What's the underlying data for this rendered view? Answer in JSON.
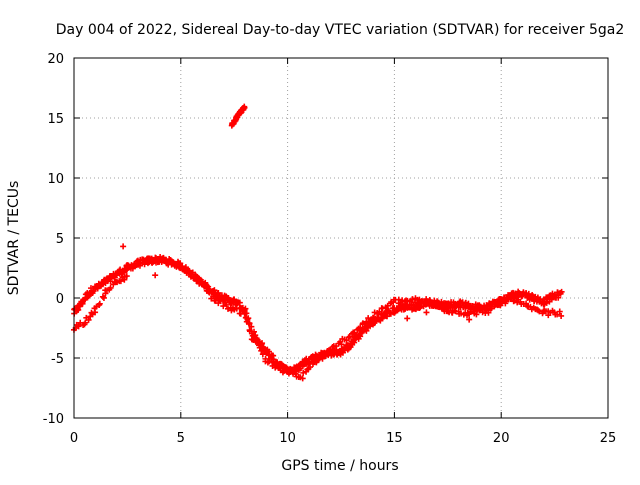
{
  "chart_data": {
    "type": "scatter",
    "title": "Day 004 of 2022, Sidereal Day-to-day VTEC variation (SDTVAR) for receiver 5ga2",
    "xlabel": "GPS time / hours",
    "ylabel": "SDTVAR / TECUs",
    "xlim": [
      0,
      25
    ],
    "ylim": [
      -10,
      20
    ],
    "x_ticks": [
      0,
      5,
      10,
      15,
      20,
      25
    ],
    "y_ticks": [
      -10,
      -5,
      0,
      5,
      10,
      15,
      20
    ],
    "grid": true,
    "marker": "plus",
    "colors": {
      "points": "#ff0000",
      "grid": "#a0a0a0",
      "axes": "#000000"
    },
    "series": [
      {
        "name": "SDTVAR",
        "trace_keypoints": [
          [
            0.0,
            -1.2
          ],
          [
            0.2,
            -0.8
          ],
          [
            0.5,
            0.0
          ],
          [
            0.8,
            0.6
          ],
          [
            1.2,
            1.0
          ],
          [
            1.6,
            1.5
          ],
          [
            2.0,
            2.0
          ],
          [
            2.5,
            2.5
          ],
          [
            3.0,
            2.9
          ],
          [
            3.5,
            3.1
          ],
          [
            4.0,
            3.2
          ],
          [
            4.5,
            3.0
          ],
          [
            5.0,
            2.7
          ],
          [
            5.5,
            2.0
          ],
          [
            6.0,
            1.2
          ],
          [
            6.5,
            0.5
          ],
          [
            7.0,
            0.0
          ],
          [
            7.5,
            -0.3
          ],
          [
            8.0,
            -1.0
          ],
          [
            8.3,
            -3.2
          ],
          [
            8.8,
            -4.0
          ],
          [
            9.2,
            -4.8
          ],
          [
            9.6,
            -5.6
          ],
          [
            10.0,
            -6.0
          ],
          [
            10.4,
            -6.0
          ],
          [
            10.8,
            -5.3
          ],
          [
            11.2,
            -5.0
          ],
          [
            11.8,
            -4.6
          ],
          [
            12.5,
            -4.5
          ],
          [
            13.0,
            -3.8
          ],
          [
            13.5,
            -2.8
          ],
          [
            14.0,
            -2.0
          ],
          [
            14.5,
            -1.5
          ],
          [
            15.0,
            -1.0
          ],
          [
            15.5,
            -0.7
          ],
          [
            16.0,
            -0.8
          ],
          [
            16.5,
            -0.3
          ],
          [
            17.0,
            -0.5
          ],
          [
            17.5,
            -0.6
          ],
          [
            18.0,
            -0.5
          ],
          [
            18.5,
            -0.7
          ],
          [
            19.0,
            -0.8
          ],
          [
            19.5,
            -0.6
          ],
          [
            20.0,
            -0.2
          ],
          [
            20.5,
            0.2
          ],
          [
            21.0,
            0.4
          ],
          [
            21.5,
            0.0
          ],
          [
            22.0,
            -0.3
          ],
          [
            22.5,
            0.2
          ],
          [
            22.8,
            0.3
          ]
        ],
        "secondary_branch": [
          [
            0.0,
            -2.5
          ],
          [
            0.5,
            -2.0
          ],
          [
            1.0,
            -1.0
          ],
          [
            1.5,
            0.5
          ],
          [
            2.0,
            1.3
          ],
          [
            2.5,
            1.9
          ],
          [
            5.8,
            1.6
          ],
          [
            6.5,
            0.0
          ],
          [
            7.5,
            -1.0
          ],
          [
            8.0,
            -1.2
          ],
          [
            9.0,
            -5.2
          ],
          [
            9.5,
            -5.8
          ],
          [
            10.2,
            -6.3
          ],
          [
            10.6,
            -6.7
          ],
          [
            11.0,
            -5.8
          ],
          [
            13.0,
            -3.0
          ],
          [
            14.0,
            -1.5
          ],
          [
            15.0,
            -0.3
          ],
          [
            16.0,
            -0.2
          ],
          [
            17.5,
            -1.0
          ],
          [
            18.5,
            -1.3
          ],
          [
            19.5,
            -1.0
          ],
          [
            20.5,
            0.0
          ],
          [
            21.5,
            -1.0
          ],
          [
            22.0,
            -1.2
          ],
          [
            22.8,
            -1.3
          ]
        ],
        "isolated_points": [
          [
            2.3,
            4.3
          ],
          [
            3.8,
            1.9
          ],
          [
            15.6,
            -1.7
          ],
          [
            16.5,
            -1.2
          ],
          [
            18.5,
            -1.8
          ]
        ],
        "high_arc": [
          [
            7.4,
            14.4
          ],
          [
            7.6,
            15.0
          ],
          [
            7.8,
            15.5
          ],
          [
            8.0,
            15.9
          ]
        ]
      }
    ]
  }
}
